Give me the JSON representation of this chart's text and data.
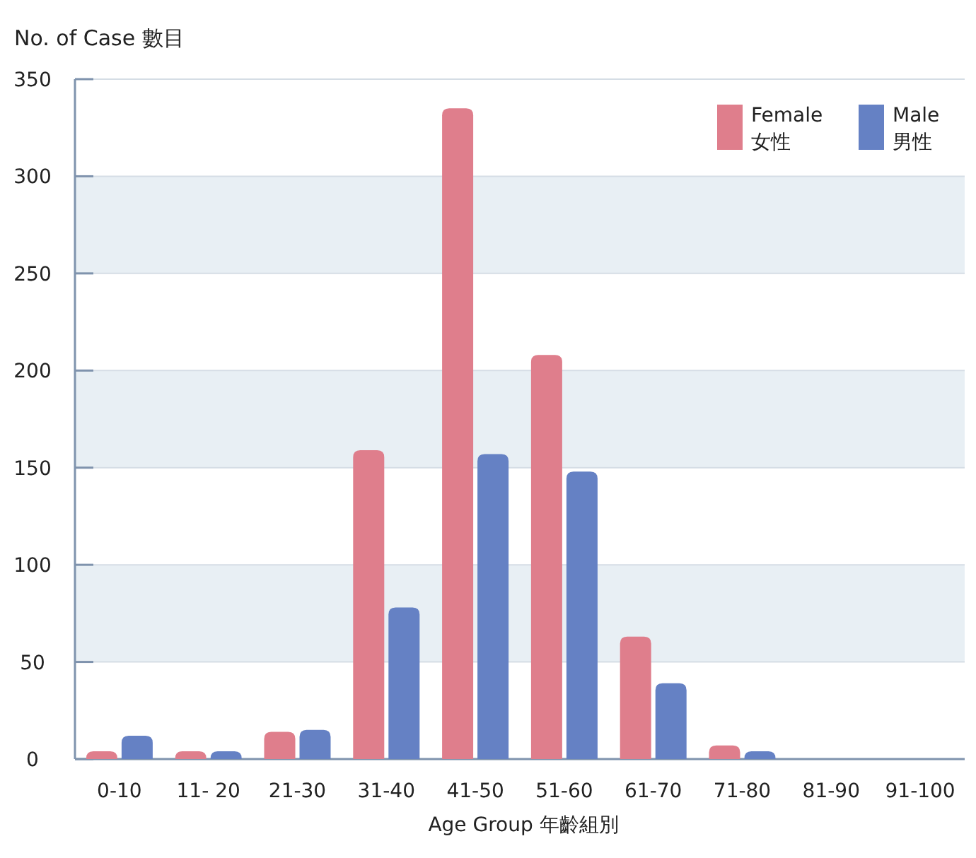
{
  "chart_data": {
    "type": "bar",
    "ylabel": "No. of Case 數目",
    "xlabel": "Age Group 年齡組別",
    "categories": [
      "0-10",
      "11- 20",
      "21-30",
      "31-40",
      "41-50",
      "51-60",
      "61-70",
      "71-80",
      "81-90",
      "91-100"
    ],
    "series": [
      {
        "name": "Female\n女性",
        "color": "#df7e8c",
        "values": [
          4,
          4,
          14,
          159,
          335,
          208,
          63,
          7,
          0,
          0
        ]
      },
      {
        "name": "Male\n男性",
        "color": "#6581c4",
        "values": [
          12,
          4,
          15,
          78,
          157,
          148,
          39,
          4,
          0,
          0
        ]
      }
    ],
    "ylim": [
      0,
      350
    ],
    "yticks": [
      0,
      50,
      100,
      150,
      200,
      250,
      300,
      350
    ],
    "grid": "y",
    "legend": "top right"
  }
}
